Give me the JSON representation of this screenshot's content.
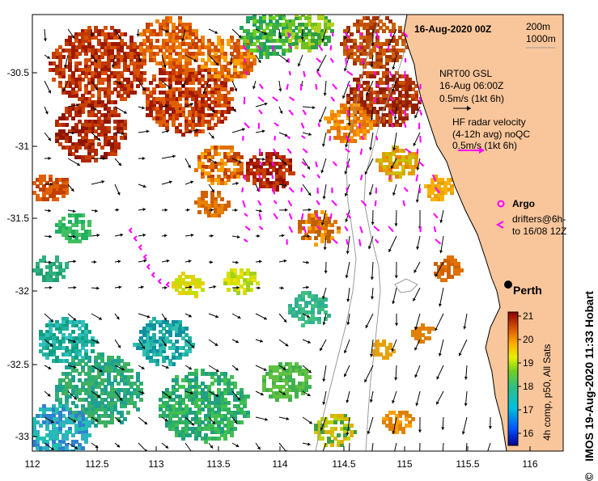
{
  "title": "16-Aug-2020 00Z",
  "depth_legend": [
    "200m",
    "1000m"
  ],
  "nrt_legend": {
    "line1": "NRT00 GSL",
    "line2": "16-Aug 06:00Z",
    "scale": "0.5m/s (1kt 6h)"
  },
  "hf_legend": {
    "line1": "HF radar velocity",
    "line2": "(4-12h avg) noQC",
    "scale": "0.5m/s (1kt 6h)"
  },
  "argo_label": "Argo",
  "drifters_label": [
    "drifters@6h-",
    "to 16/08 12Z"
  ],
  "city_label": "Perth",
  "colorbar": {
    "ticks": [
      "21",
      "20",
      "19",
      "18",
      "17",
      "16"
    ],
    "title": "4h comp, p50, All Sats"
  },
  "lat_ticks": [
    "-30.5",
    "-31",
    "-31.5",
    "-32",
    "-32.5",
    "-33"
  ],
  "lon_ticks": [
    "112",
    "112.5",
    "113",
    "113.5",
    "114",
    "114.5",
    "115",
    "115.5",
    "116"
  ],
  "credit": "IMOS 19-Aug-2020 11:33 Hobart",
  "copyright_symbol": "©",
  "colors": {
    "land": "#f9c69b",
    "hf_arrow": "#ff00ff",
    "current_arrow": "#000000"
  }
}
